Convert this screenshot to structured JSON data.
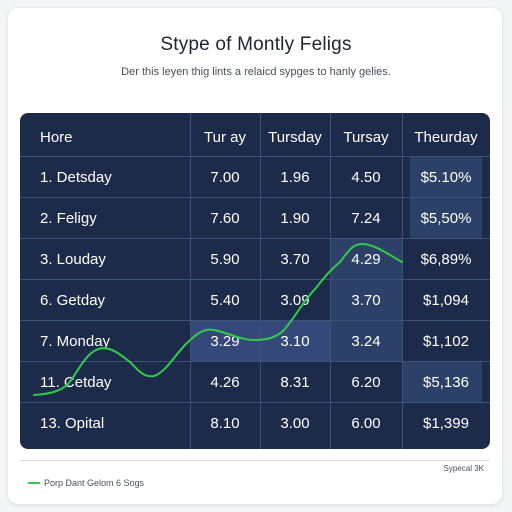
{
  "page": {
    "title": "Stype of Montly Feligs",
    "subtitle": "Der this leyen thig lints a relaicd sypges to hanly gelies."
  },
  "table": {
    "headers": [
      "Hore",
      "Tur ay",
      "Tursday",
      "Tursay",
      "Theurday"
    ],
    "rows": [
      {
        "label": "1.  Detsday",
        "c1": "7.00",
        "c2": "1.96",
        "c3": "4.50",
        "c4": "$5.10%"
      },
      {
        "label": "2.  Feligy",
        "c1": "7.60",
        "c2": "1.90",
        "c3": "7.24",
        "c4": "$5,50%"
      },
      {
        "label": "3.  Louday",
        "c1": "5.90",
        "c2": "3.70",
        "c3": "4.29",
        "c4": "$6,89%"
      },
      {
        "label": "6.  Getday",
        "c1": "5.40",
        "c2": "3.09",
        "c3": "3.70",
        "c4": "$1,094"
      },
      {
        "label": "7.  Monday",
        "c1": "3.29",
        "c2": "3.10",
        "c3": "3.24",
        "c4": "$1,102"
      },
      {
        "label": "11. Cetday",
        "c1": "4.26",
        "c2": "8.31",
        "c3": "6.20",
        "c4": "$5,136"
      },
      {
        "label": "13. Opital",
        "c1": "8.10",
        "c2": "3.00",
        "c3": "6.00",
        "c4": "$1,399"
      }
    ]
  },
  "legend": {
    "label": "Porp Dant Gelom 6 Sogs"
  },
  "corner_note": "Sypecal 3K",
  "colors": {
    "panel": "#1c2b4a",
    "highlight": "#2d4168",
    "trend_line": "#35c94a"
  }
}
